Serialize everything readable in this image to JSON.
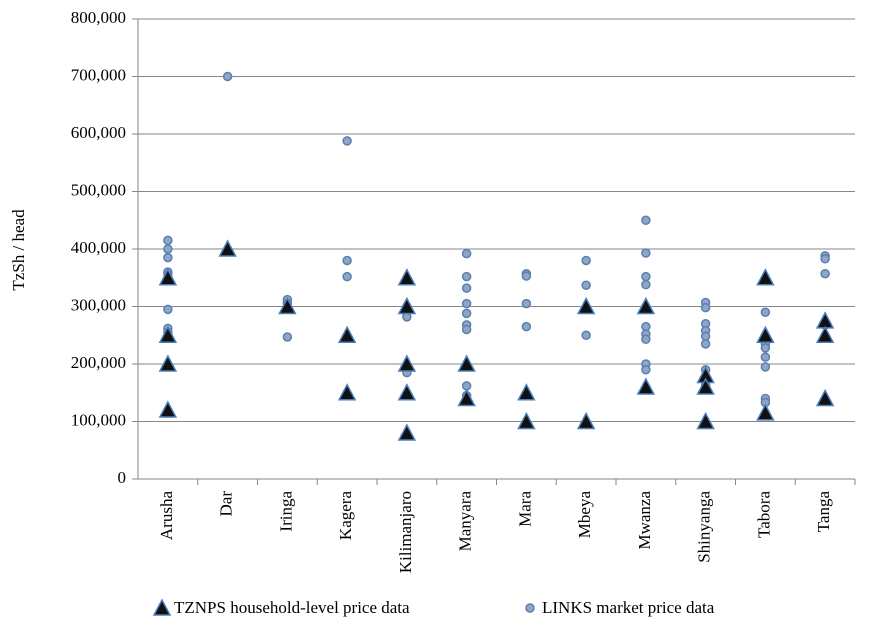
{
  "chart_data": {
    "type": "scatter",
    "y_label": "TzSh / head",
    "categories": [
      "Arusha",
      "Dar",
      "Iringa",
      "Kagera",
      "Kilimanjaro",
      "Manyara",
      "Mara",
      "Mbeya",
      "Mwanza",
      "Shinyanga",
      "Tabora",
      "Tanga"
    ],
    "ylim": [
      0,
      800000
    ],
    "yticks": [
      0,
      {
        "value": 100000,
        "label": "100,000"
      },
      {
        "value": 200000,
        "label": "200,000"
      },
      {
        "value": 300000,
        "label": "300,000"
      },
      {
        "value": 400000,
        "label": "400,000"
      },
      {
        "value": 500000,
        "label": "500,000"
      },
      {
        "value": 600000,
        "label": "600,000"
      },
      {
        "value": 700000,
        "label": "700,000"
      },
      {
        "value": 800000,
        "label": "800,000"
      }
    ],
    "grid": true,
    "legend": "bottom",
    "series": [
      {
        "name": "TZNPS household-level price data",
        "marker": "triangle",
        "color": "#111111",
        "edge": "#4a7ebb",
        "x": [
          "Arusha",
          "Arusha",
          "Arusha",
          "Arusha",
          "Dar",
          "Iringa",
          "Kagera",
          "Kagera",
          "Kilimanjaro",
          "Kilimanjaro",
          "Kilimanjaro",
          "Kilimanjaro",
          "Kilimanjaro",
          "Manyara",
          "Manyara",
          "Mara",
          "Mara",
          "Mbeya",
          "Mbeya",
          "Mwanza",
          "Mwanza",
          "Shinyanga",
          "Shinyanga",
          "Shinyanga",
          "Tabora",
          "Tabora",
          "Tabora",
          "Tanga",
          "Tanga",
          "Tanga"
        ],
        "values": [
          350000,
          250000,
          200000,
          120000,
          400000,
          300000,
          250000,
          150000,
          350000,
          300000,
          200000,
          150000,
          80000,
          200000,
          140000,
          150000,
          100000,
          300000,
          100000,
          300000,
          160000,
          180000,
          160000,
          100000,
          350000,
          250000,
          115000,
          275000,
          250000,
          140000
        ]
      },
      {
        "name": "LINKS market price data",
        "marker": "circle",
        "color": "#8ea6c8",
        "edge": "#5b7fae",
        "x": [
          "Arusha",
          "Arusha",
          "Arusha",
          "Arusha",
          "Arusha",
          "Arusha",
          "Arusha",
          "Arusha",
          "Arusha",
          "Dar",
          "Iringa",
          "Iringa",
          "Iringa",
          "Kagera",
          "Kagera",
          "Kagera",
          "Kilimanjaro",
          "Kilimanjaro",
          "Kilimanjaro",
          "Kilimanjaro",
          "Kilimanjaro",
          "Manyara",
          "Manyara",
          "Manyara",
          "Manyara",
          "Manyara",
          "Manyara",
          "Manyara",
          "Manyara",
          "Manyara",
          "Manyara",
          "Mara",
          "Mara",
          "Mara",
          "Mara",
          "Mbeya",
          "Mbeya",
          "Mbeya",
          "Mwanza",
          "Mwanza",
          "Mwanza",
          "Mwanza",
          "Mwanza",
          "Mwanza",
          "Mwanza",
          "Mwanza",
          "Mwanza",
          "Mwanza",
          "Shinyanga",
          "Shinyanga",
          "Shinyanga",
          "Shinyanga",
          "Shinyanga",
          "Shinyanga",
          "Shinyanga",
          "Shinyanga",
          "Shinyanga",
          "Shinyanga",
          "Shinyanga",
          "Tabora",
          "Tabora",
          "Tabora",
          "Tabora",
          "Tabora",
          "Tabora",
          "Tabora",
          "Tabora",
          "Tanga",
          "Tanga",
          "Tanga",
          "Tanga",
          "Tanga"
        ],
        "values": [
          415000,
          400000,
          385000,
          360000,
          355000,
          295000,
          262000,
          255000,
          198000,
          700000,
          312000,
          305000,
          247000,
          588000,
          380000,
          352000,
          300000,
          290000,
          282000,
          192000,
          185000,
          392000,
          352000,
          332000,
          305000,
          288000,
          268000,
          260000,
          162000,
          145000,
          140000,
          357000,
          353000,
          305000,
          265000,
          380000,
          337000,
          250000,
          450000,
          393000,
          352000,
          338000,
          300000,
          265000,
          252000,
          243000,
          200000,
          190000,
          307000,
          298000,
          270000,
          258000,
          248000,
          235000,
          190000,
          175000,
          163000,
          157000,
          95000,
          290000,
          248000,
          235000,
          228000,
          212000,
          195000,
          140000,
          133000,
          388000,
          383000,
          357000,
          270000,
          268000
        ]
      }
    ]
  }
}
